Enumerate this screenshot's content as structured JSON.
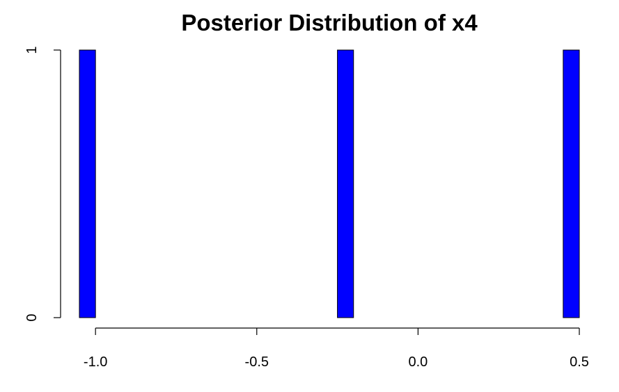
{
  "chart_data": {
    "type": "bar",
    "title": "Posterior Distribution of x4",
    "xlabel": "",
    "ylabel": "",
    "x_ticks": [
      -1.0,
      -0.5,
      0.0,
      0.5
    ],
    "x_tick_labels": [
      "-1.0",
      "-0.5",
      "0.0",
      "0.5"
    ],
    "y_ticks": [
      0,
      1
    ],
    "y_tick_labels": [
      "0",
      "1"
    ],
    "xlim": [
      -1.05,
      0.5
    ],
    "ylim": [
      0,
      1
    ],
    "bar_width": 0.05,
    "bars": [
      {
        "x_start": -1.05,
        "x_end": -1.0,
        "value": 1
      },
      {
        "x_start": -0.25,
        "x_end": -0.2,
        "value": 1
      },
      {
        "x_start": 0.45,
        "x_end": 0.5,
        "value": 1
      }
    ],
    "bar_color": "#0000ff",
    "grid": false
  }
}
